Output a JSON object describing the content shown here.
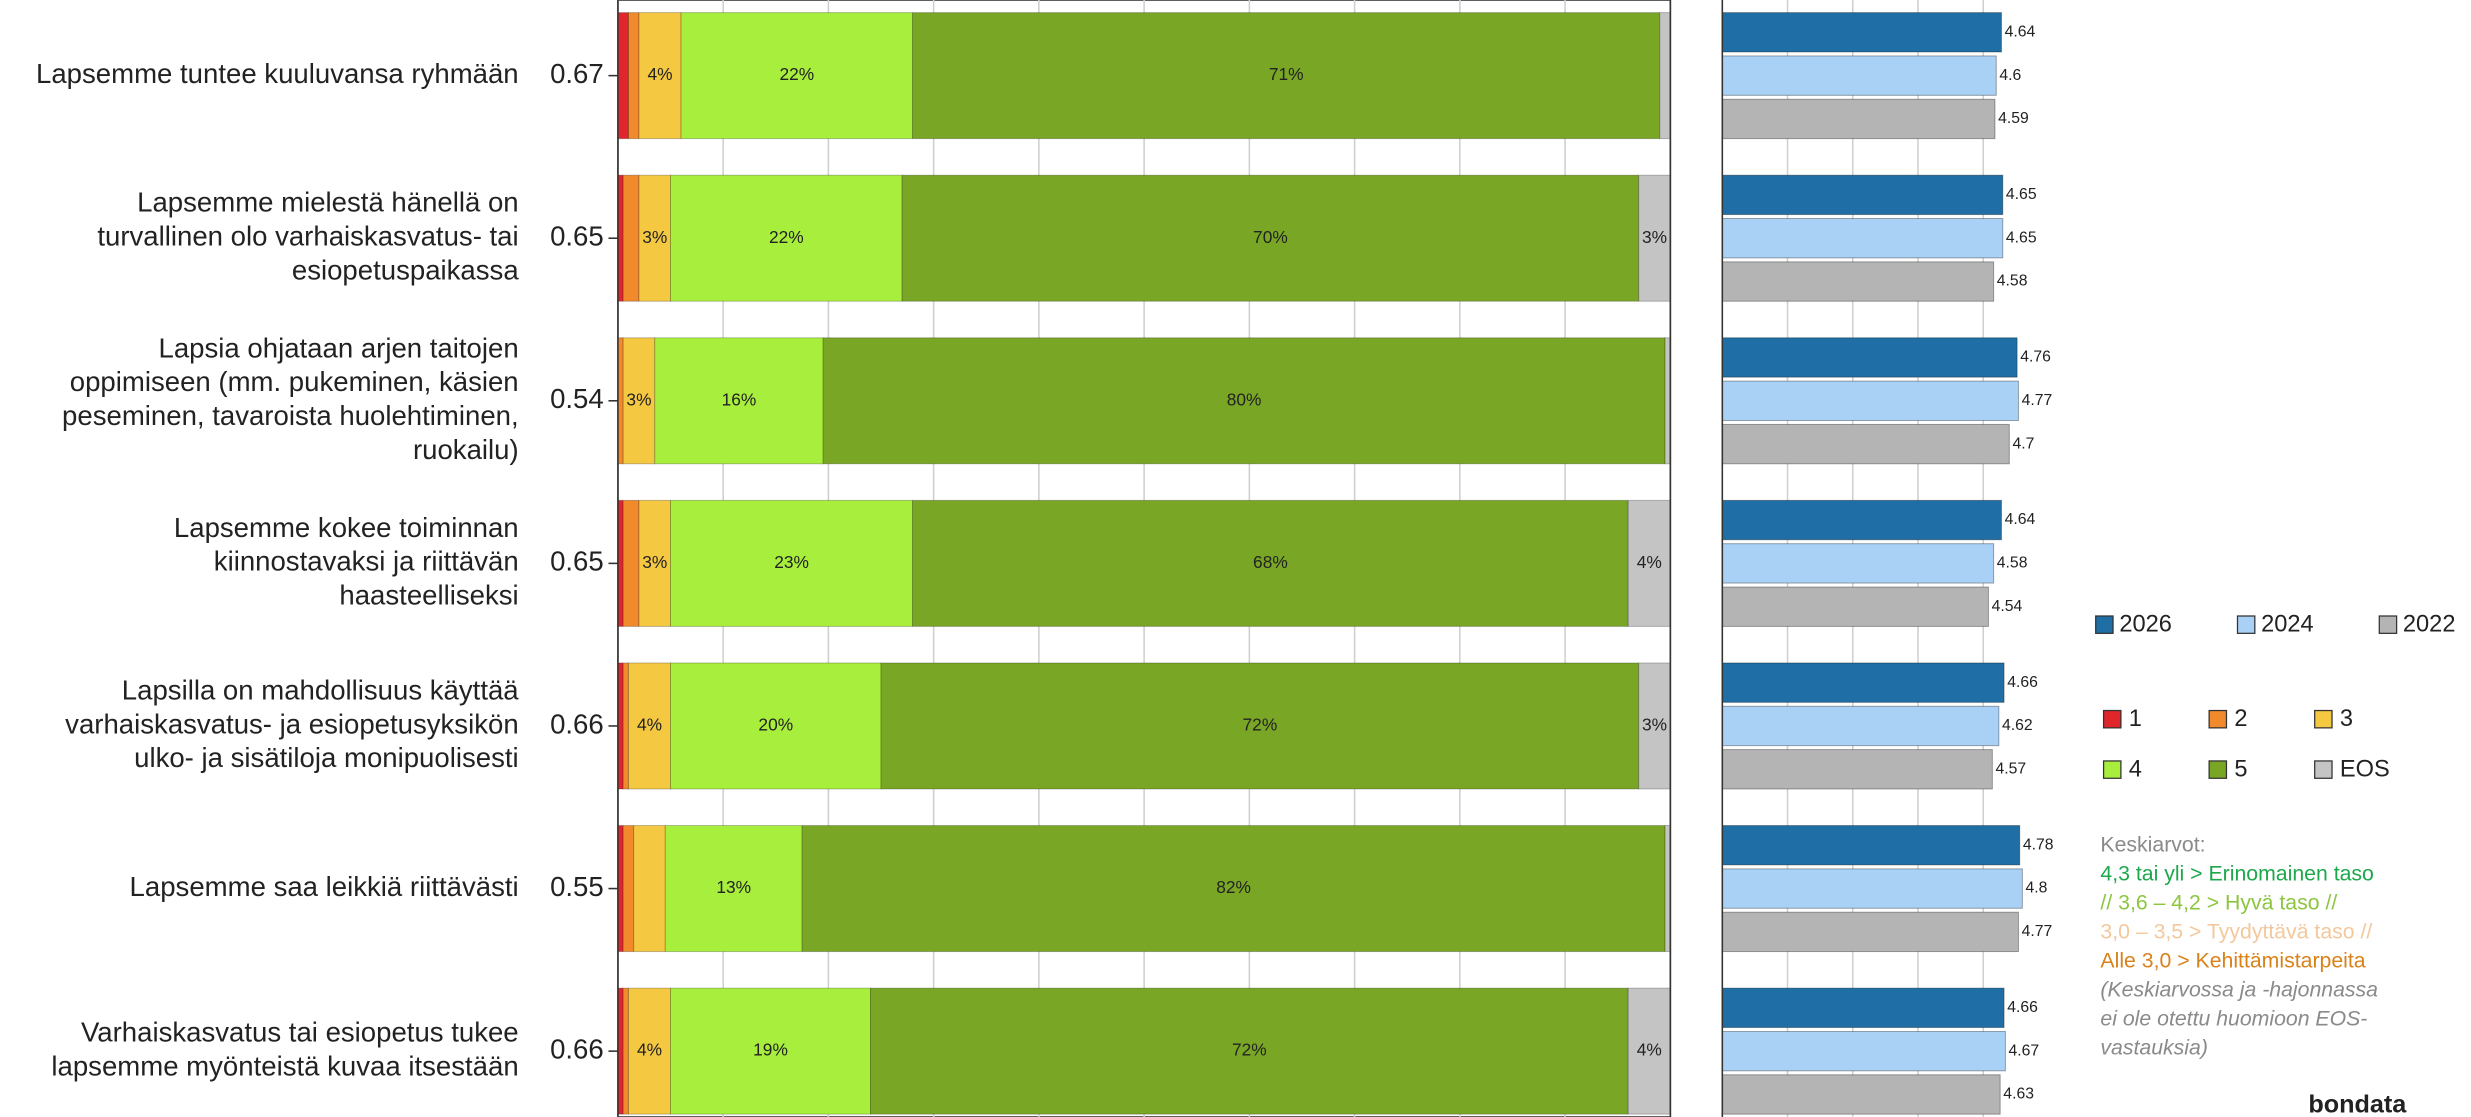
{
  "chart_data": [
    {
      "type": "stacked_bar",
      "categories": [
        [
          "Lapsemme tuntee kuuluvansa ryhmään"
        ],
        [
          "Lapsemme mielestä hänellä on",
          "turvallinen olo varhaiskasvatus- tai",
          "esiopetuspaikassa"
        ],
        [
          "Lapsia ohjataan arjen taitojen",
          "oppimiseen (mm. pukeminen, käsien",
          "peseminen, tavaroista huolehtiminen,",
          "ruokailu)"
        ],
        [
          "Lapsemme kokee toiminnan",
          "kiinnostavaksi ja riittävän",
          "haasteelliseksi"
        ],
        [
          "Lapsilla on mahdollisuus käyttää",
          "varhaiskasvatus- ja esiopetusyksikön",
          "ulko- ja sisätiloja monipuolisesti"
        ],
        [
          "Lapsemme saa leikkiä riittävästi"
        ],
        [
          "Varhaiskasvatus tai esiopetus tukee",
          "lapsemme myönteistä kuvaa itsestään"
        ]
      ],
      "std_devs": [
        0.67,
        0.65,
        0.54,
        0.65,
        0.66,
        0.55,
        0.66
      ],
      "series": [
        {
          "name": "1",
          "color": "#e0262a",
          "values": [
            1,
            0.5,
            0,
            0.5,
            0.5,
            0.5,
            0.5
          ],
          "value_labels": [
            null,
            null,
            null,
            null,
            null,
            null,
            null
          ]
        },
        {
          "name": "2",
          "color": "#f08a2a",
          "values": [
            1,
            1.5,
            0.5,
            1.5,
            0.5,
            1,
            0.5
          ],
          "value_labels": [
            null,
            null,
            null,
            null,
            null,
            null,
            null
          ]
        },
        {
          "name": "3",
          "color": "#f5c842",
          "values": [
            4,
            3,
            3,
            3,
            4,
            3,
            4
          ],
          "value_labels": [
            "4%",
            "3%",
            "3%",
            "3%",
            "4%",
            null,
            "4%"
          ]
        },
        {
          "name": "4",
          "color": "#a8ee3c",
          "values": [
            22,
            22,
            16,
            23,
            20,
            13,
            19
          ],
          "value_labels": [
            "22%",
            "22%",
            "16%",
            "23%",
            "20%",
            "13%",
            "19%"
          ]
        },
        {
          "name": "5",
          "color": "#7aa626",
          "values": [
            71,
            70,
            80,
            68,
            72,
            82,
            72
          ],
          "value_labels": [
            "71%",
            "70%",
            "80%",
            "68%",
            "72%",
            "82%",
            "72%"
          ]
        },
        {
          "name": "EOS",
          "color": "#c4c4c4",
          "values": [
            1,
            3,
            0.5,
            4,
            3,
            0.5,
            4
          ],
          "value_labels": [
            null,
            "3%",
            null,
            "4%",
            "3%",
            null,
            "4%"
          ]
        }
      ],
      "xlim": [
        0,
        100
      ],
      "xticks": [
        0,
        10,
        20,
        30,
        40,
        50,
        60,
        70,
        80,
        90,
        100
      ],
      "grid": true
    },
    {
      "type": "bar",
      "series": [
        {
          "name": "2026",
          "color": "#1f6fa6",
          "values": [
            4.64,
            4.65,
            4.76,
            4.64,
            4.66,
            4.78,
            4.66
          ]
        },
        {
          "name": "2024",
          "color": "#a9d0f5",
          "values": [
            4.6,
            4.65,
            4.77,
            4.58,
            4.62,
            4.8,
            4.67
          ]
        },
        {
          "name": "2022",
          "color": "#b4b4b4",
          "values": [
            4.59,
            4.58,
            4.7,
            4.54,
            4.57,
            4.77,
            4.63
          ]
        }
      ],
      "xlim": [
        2.5,
        5
      ],
      "xticks": [
        3,
        3.5,
        4,
        4.5
      ],
      "grid": true
    }
  ],
  "notes": {
    "lines": [
      {
        "text": "Keskiarvot:",
        "color": "#8a8a8a"
      },
      {
        "text": "4,3 tai yli > Erinomainen taso",
        "color": "#1ea84c"
      },
      {
        "text": "// 3,6 – 4,2 > Hyvä taso //",
        "color": "#8cc63f"
      },
      {
        "text": "3,0 – 3,5 > Tyydyttävä taso //",
        "color": "#f3c89c"
      },
      {
        "text": "Alle 3,0 > Kehittämistarpeita",
        "color": "#d9821a"
      },
      {
        "text": "(Keskiarvossa ja -hajonnassa",
        "color": "#8a8a8a",
        "italic": true
      },
      {
        "text": "ei ole otettu huomioon EOS-",
        "color": "#8a8a8a",
        "italic": true
      },
      {
        "text": "vastauksia)",
        "color": "#8a8a8a",
        "italic": true
      }
    ],
    "brand": "bondata"
  }
}
